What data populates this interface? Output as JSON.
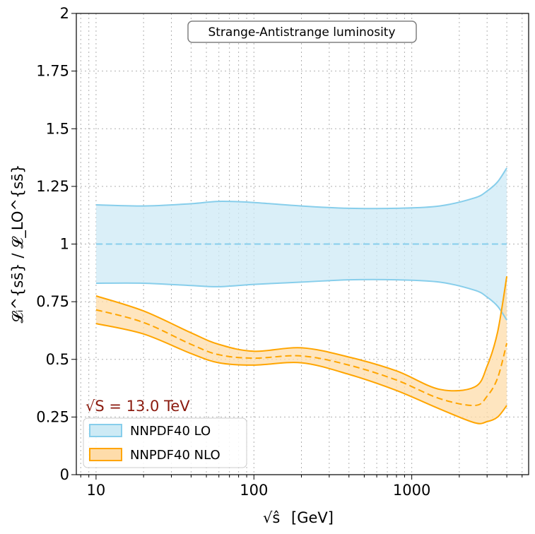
{
  "chart_data": {
    "type": "area",
    "title": "Strange-Antistrange luminosity",
    "xlabel_root": "√ŝ",
    "xlabel_unit": "[GeV]",
    "ylabel": "𝓛ᵢ^{ss̄} / 𝓛_LO^{ss̄}",
    "xscale": "log",
    "xlim": [
      7.5,
      5500
    ],
    "ylim": [
      0,
      2
    ],
    "x_ticks": [
      10,
      100,
      1000
    ],
    "x_tick_labels": [
      "10",
      "100",
      "1000"
    ],
    "y_ticks": [
      0,
      0.25,
      0.5,
      0.75,
      1,
      1.25,
      1.5,
      1.75,
      2
    ],
    "y_tick_labels": [
      "0",
      "0.25",
      "0.5",
      "0.75",
      "1",
      "1.25",
      "1.5",
      "1.75",
      "2"
    ],
    "grid": true,
    "annotation": "√S = 13.0 TeV",
    "annotation_color": "#8b1a0e",
    "legend_position": "lower-left",
    "x": [
      10,
      20,
      40,
      60,
      100,
      200,
      400,
      800,
      1500,
      2500,
      3000,
      3500,
      4000
    ],
    "series": [
      {
        "name": "NNPDF40 LO",
        "fill": "#cdeaf5",
        "line": "#87ceeb",
        "central": [
          1.0,
          1.0,
          1.0,
          1.0,
          1.0,
          1.0,
          1.0,
          1.0,
          1.0,
          1.0,
          1.0,
          1.0,
          1.0
        ],
        "upper": [
          1.17,
          1.165,
          1.175,
          1.185,
          1.18,
          1.165,
          1.155,
          1.155,
          1.165,
          1.2,
          1.23,
          1.27,
          1.33
        ],
        "lower": [
          0.83,
          0.83,
          0.82,
          0.815,
          0.825,
          0.835,
          0.845,
          0.845,
          0.835,
          0.8,
          0.77,
          0.73,
          0.67
        ]
      },
      {
        "name": "NNPDF40 NLO",
        "fill": "#fedcaa",
        "line": "#ffa500",
        "central": [
          0.715,
          0.66,
          0.565,
          0.52,
          0.505,
          0.515,
          0.475,
          0.41,
          0.33,
          0.3,
          0.34,
          0.42,
          0.57
        ],
        "upper": [
          0.775,
          0.71,
          0.615,
          0.565,
          0.535,
          0.55,
          0.51,
          0.45,
          0.37,
          0.38,
          0.47,
          0.62,
          0.86
        ],
        "lower": [
          0.655,
          0.61,
          0.525,
          0.485,
          0.475,
          0.485,
          0.435,
          0.365,
          0.285,
          0.225,
          0.23,
          0.25,
          0.3
        ]
      }
    ]
  }
}
